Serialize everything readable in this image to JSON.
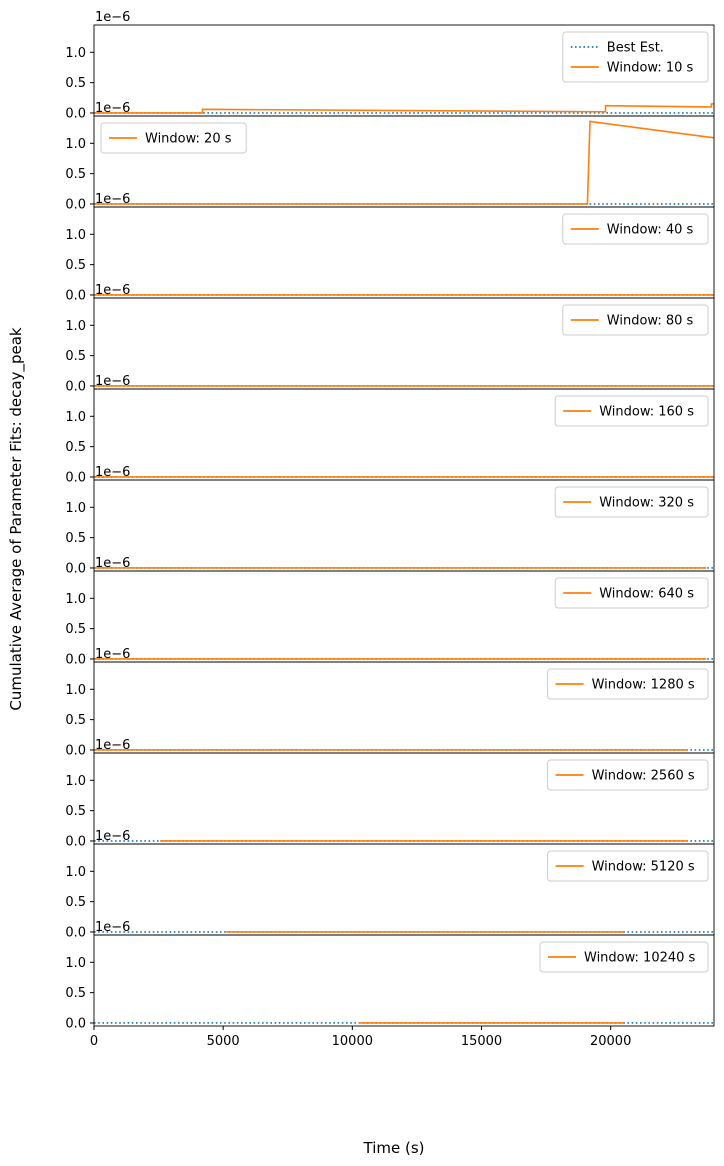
{
  "figure": {
    "ylabel": "Cumulative Average of Parameter Fits: decay_peak",
    "xlabel": "Time (s)",
    "offset_label": "1e−6"
  },
  "chart_data": {
    "type": "line",
    "xlim": [
      0,
      24000
    ],
    "ylim": [
      -0.05,
      1.45
    ],
    "y_scale_factor": "1e-6",
    "x_ticks": [
      0,
      5000,
      10000,
      15000,
      20000
    ],
    "x_tick_labels": [
      "0",
      "5000",
      "10000",
      "15000",
      "20000"
    ],
    "y_ticks": [
      0.0,
      0.5,
      1.0
    ],
    "y_tick_labels": [
      "0.0",
      "0.5",
      "1.0"
    ],
    "colors": {
      "best_est": "#1f77b4",
      "window": "#ff7f0e"
    },
    "panels": [
      {
        "legend": [
          "Best Est.",
          "Window: 10 s"
        ],
        "best_est": {
          "name": "Best Est.",
          "x": [
            0,
            24000
          ],
          "y": [
            0.0,
            0.0
          ]
        },
        "series": {
          "name": "Window: 10 s",
          "x": [
            0,
            4200,
            4200,
            19800,
            19800,
            23900,
            23900,
            24000
          ],
          "y": [
            0.0,
            0.0,
            0.06,
            0.02,
            0.12,
            0.1,
            0.15,
            0.15
          ]
        }
      },
      {
        "legend": [
          "Window: 20 s"
        ],
        "best_est": {
          "name": "Best Est.",
          "x": [
            0,
            24000
          ],
          "y": [
            0.0,
            0.0
          ]
        },
        "series": {
          "name": "Window: 20 s",
          "x": [
            0,
            19100,
            19200,
            24000
          ],
          "y": [
            0.0,
            0.0,
            1.36,
            1.09
          ]
        }
      },
      {
        "legend": [
          "Window: 40 s"
        ],
        "best_est": {
          "name": "Best Est.",
          "x": [
            0,
            24000
          ],
          "y": [
            0.0,
            0.0
          ]
        },
        "series": {
          "name": "Window: 40 s",
          "x": [
            0,
            24000
          ],
          "y": [
            0.0,
            0.0
          ]
        }
      },
      {
        "legend": [
          "Window: 80 s"
        ],
        "best_est": {
          "name": "Best Est.",
          "x": [
            0,
            24000
          ],
          "y": [
            0.0,
            0.0
          ]
        },
        "series": {
          "name": "Window: 80 s",
          "x": [
            0,
            24000
          ],
          "y": [
            0.0,
            0.0
          ]
        }
      },
      {
        "legend": [
          "Window: 160 s"
        ],
        "best_est": {
          "name": "Best Est.",
          "x": [
            0,
            24000
          ],
          "y": [
            0.0,
            0.0
          ]
        },
        "series": {
          "name": "Window: 160 s",
          "x": [
            0,
            24000
          ],
          "y": [
            0.0,
            0.0
          ]
        }
      },
      {
        "legend": [
          "Window: 320 s"
        ],
        "best_est": {
          "name": "Best Est.",
          "x": [
            0,
            24000
          ],
          "y": [
            0.0,
            0.0
          ]
        },
        "series": {
          "name": "Window: 320 s",
          "x": [
            0,
            23700
          ],
          "y": [
            0.0,
            0.0
          ]
        }
      },
      {
        "legend": [
          "Window: 640 s"
        ],
        "best_est": {
          "name": "Best Est.",
          "x": [
            0,
            24000
          ],
          "y": [
            0.0,
            0.0
          ]
        },
        "series": {
          "name": "Window: 640 s",
          "x": [
            0,
            23700
          ],
          "y": [
            0.0,
            0.0
          ]
        }
      },
      {
        "legend": [
          "Window: 1280 s"
        ],
        "best_est": {
          "name": "Best Est.",
          "x": [
            0,
            24000
          ],
          "y": [
            0.0,
            0.0
          ]
        },
        "series": {
          "name": "Window: 1280 s",
          "x": [
            0,
            23000
          ],
          "y": [
            0.0,
            0.0
          ]
        }
      },
      {
        "legend": [
          "Window: 2560 s"
        ],
        "best_est": {
          "name": "Best Est.",
          "x": [
            0,
            24000
          ],
          "y": [
            0.0,
            0.0
          ]
        },
        "series": {
          "name": "Window: 2560 s",
          "x": [
            2560,
            23000
          ],
          "y": [
            0.0,
            0.0
          ]
        }
      },
      {
        "legend": [
          "Window: 5120 s"
        ],
        "best_est": {
          "name": "Best Est.",
          "x": [
            0,
            24000
          ],
          "y": [
            0.0,
            0.0
          ]
        },
        "series": {
          "name": "Window: 5120 s",
          "x": [
            5120,
            20480
          ],
          "y": [
            0.0,
            0.0
          ]
        }
      },
      {
        "legend": [
          "Window: 10240 s"
        ],
        "best_est": {
          "name": "Best Est.",
          "x": [
            0,
            24000
          ],
          "y": [
            0.0,
            0.0
          ]
        },
        "series": {
          "name": "Window: 10240 s",
          "x": [
            10240,
            20480
          ],
          "y": [
            0.0,
            0.0
          ]
        }
      }
    ]
  }
}
